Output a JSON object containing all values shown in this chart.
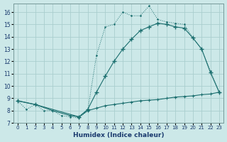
{
  "xlabel": "Humidex (Indice chaleur)",
  "bg_color": "#cce8e8",
  "line_color": "#1a6e6e",
  "grid_color": "#aacece",
  "xlim": [
    -0.5,
    23.5
  ],
  "ylim": [
    7.0,
    16.7
  ],
  "yticks": [
    7,
    8,
    9,
    10,
    11,
    12,
    13,
    14,
    15,
    16
  ],
  "xticks": [
    0,
    1,
    2,
    3,
    4,
    5,
    6,
    7,
    8,
    9,
    10,
    11,
    12,
    13,
    14,
    15,
    16,
    17,
    18,
    19,
    20,
    21,
    22,
    23
  ],
  "line1_x": [
    0,
    1,
    2,
    3,
    4,
    5,
    6,
    7,
    8,
    9,
    10,
    11,
    12,
    13,
    14,
    15,
    16,
    17,
    18,
    19,
    20,
    21,
    22,
    23
  ],
  "line1_y": [
    8.8,
    8.1,
    8.5,
    8.0,
    8.0,
    7.6,
    7.5,
    7.4,
    8.0,
    12.5,
    14.8,
    15.0,
    16.0,
    15.7,
    15.7,
    16.5,
    15.4,
    15.2,
    15.1,
    15.0,
    13.9,
    13.0,
    11.2,
    9.5
  ],
  "line2_x": [
    0,
    2,
    7,
    8,
    9,
    10,
    11,
    12,
    13,
    14,
    15,
    16,
    17,
    18,
    19,
    20,
    21,
    22,
    23
  ],
  "line2_y": [
    8.8,
    8.5,
    7.5,
    8.1,
    9.5,
    10.8,
    12.0,
    13.0,
    13.8,
    14.5,
    14.8,
    15.1,
    15.0,
    14.8,
    14.7,
    13.9,
    13.0,
    11.1,
    9.5
  ],
  "line3_x": [
    0,
    2,
    4,
    6,
    7,
    8,
    9,
    10,
    11,
    12,
    13,
    14,
    15,
    16,
    17,
    18,
    19,
    20,
    21,
    22,
    23
  ],
  "line3_y": [
    8.8,
    8.5,
    8.0,
    7.6,
    7.5,
    8.0,
    8.2,
    8.4,
    8.5,
    8.6,
    8.7,
    8.8,
    8.85,
    8.9,
    9.0,
    9.1,
    9.15,
    9.2,
    9.3,
    9.35,
    9.5
  ]
}
